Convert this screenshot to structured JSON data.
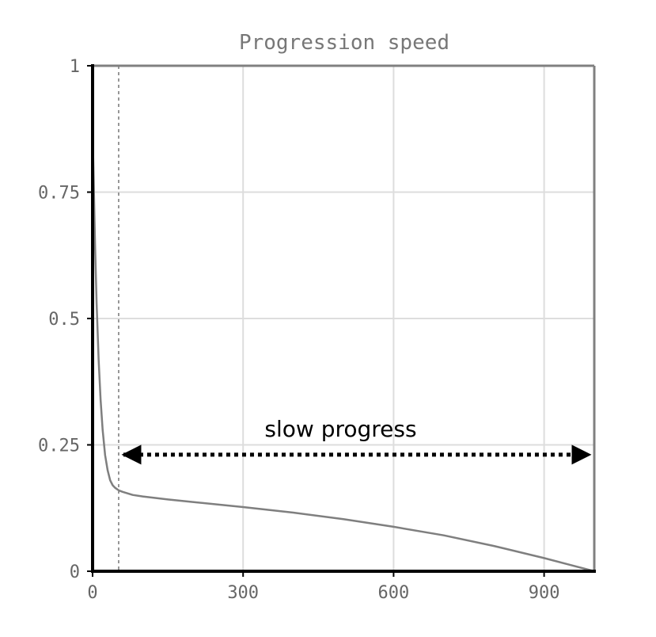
{
  "chart_data": {
    "type": "line",
    "title": "Progression speed",
    "xlabel": "",
    "ylabel": "",
    "xlim": [
      0,
      1000
    ],
    "ylim": [
      0,
      1
    ],
    "x_ticks": [
      0,
      300,
      600,
      900
    ],
    "x_tick_labels": [
      "0",
      "300",
      "600",
      "900"
    ],
    "y_ticks": [
      0,
      0.25,
      0.5,
      0.75,
      1
    ],
    "y_tick_labels": [
      "0",
      "0.25",
      "0.5",
      "0.75",
      "1"
    ],
    "grid": true,
    "series": [
      {
        "x": [
          0,
          2,
          5,
          8,
          12,
          16,
          20,
          25,
          30,
          35,
          40,
          45,
          52,
          60,
          80,
          100,
          150,
          200,
          300,
          400,
          500,
          600,
          700,
          800,
          900,
          950,
          1000
        ],
        "y": [
          0.87,
          0.78,
          0.64,
          0.53,
          0.42,
          0.34,
          0.28,
          0.23,
          0.2,
          0.18,
          0.17,
          0.165,
          0.16,
          0.157,
          0.151,
          0.148,
          0.142,
          0.137,
          0.127,
          0.116,
          0.103,
          0.088,
          0.071,
          0.05,
          0.026,
          0.013,
          0.0
        ],
        "color": "#7f7f7f"
      }
    ],
    "vertical_marker": {
      "x": 52,
      "style": "dashed"
    },
    "annotations": [
      {
        "text": "slow progress",
        "arrow": "double-headed",
        "x_from": 52,
        "x_to": 1000,
        "y": 0.24
      }
    ]
  }
}
